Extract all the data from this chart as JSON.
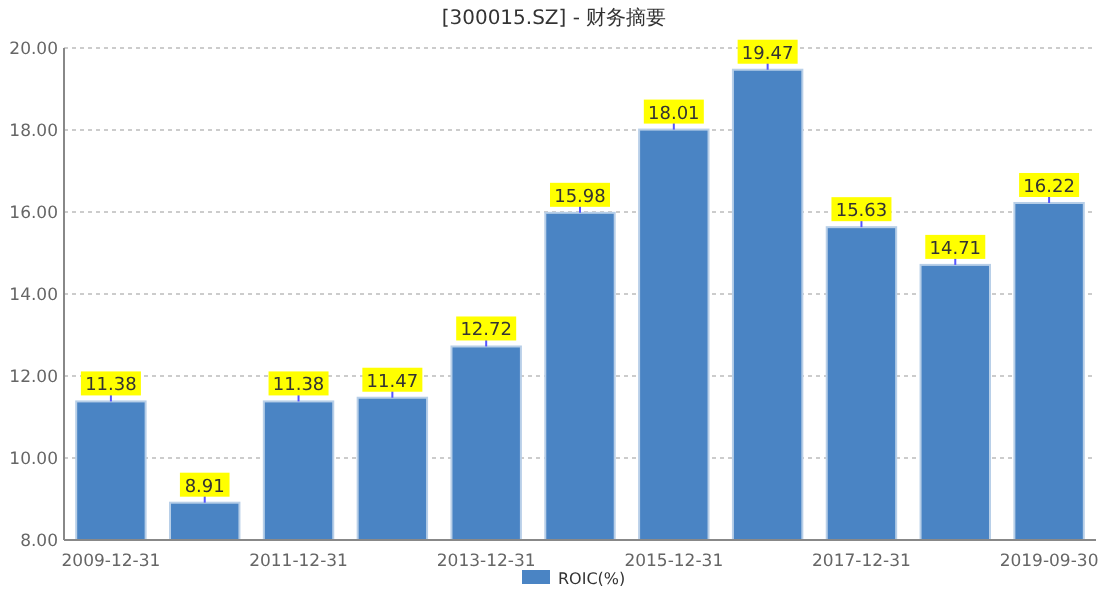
{
  "chart_data": {
    "type": "bar",
    "title": "[300015.SZ] - 财务摘要",
    "categories": [
      "2009-12-31",
      null,
      "2011-12-31",
      null,
      "2013-12-31",
      null,
      "2015-12-31",
      null,
      "2017-12-31",
      null,
      "2019-09-30"
    ],
    "series": [
      {
        "name": "ROIC(%)",
        "color": "#4a84c4",
        "values": [
          11.38,
          8.91,
          11.38,
          11.47,
          12.72,
          15.98,
          18.01,
          19.47,
          15.63,
          14.71,
          16.22
        ]
      }
    ],
    "ylim": [
      8,
      20
    ],
    "yticks": [
      {
        "value": 8,
        "label": "8.00"
      },
      {
        "value": 10,
        "label": "10.00"
      },
      {
        "value": 12,
        "label": "12.00"
      },
      {
        "value": 14,
        "label": "14.00"
      },
      {
        "value": 16,
        "label": "16.00"
      },
      {
        "value": 18,
        "label": "18.00"
      },
      {
        "value": 20,
        "label": "20.00"
      }
    ],
    "grid": "y",
    "legend": "bottom",
    "data_labels": true
  }
}
